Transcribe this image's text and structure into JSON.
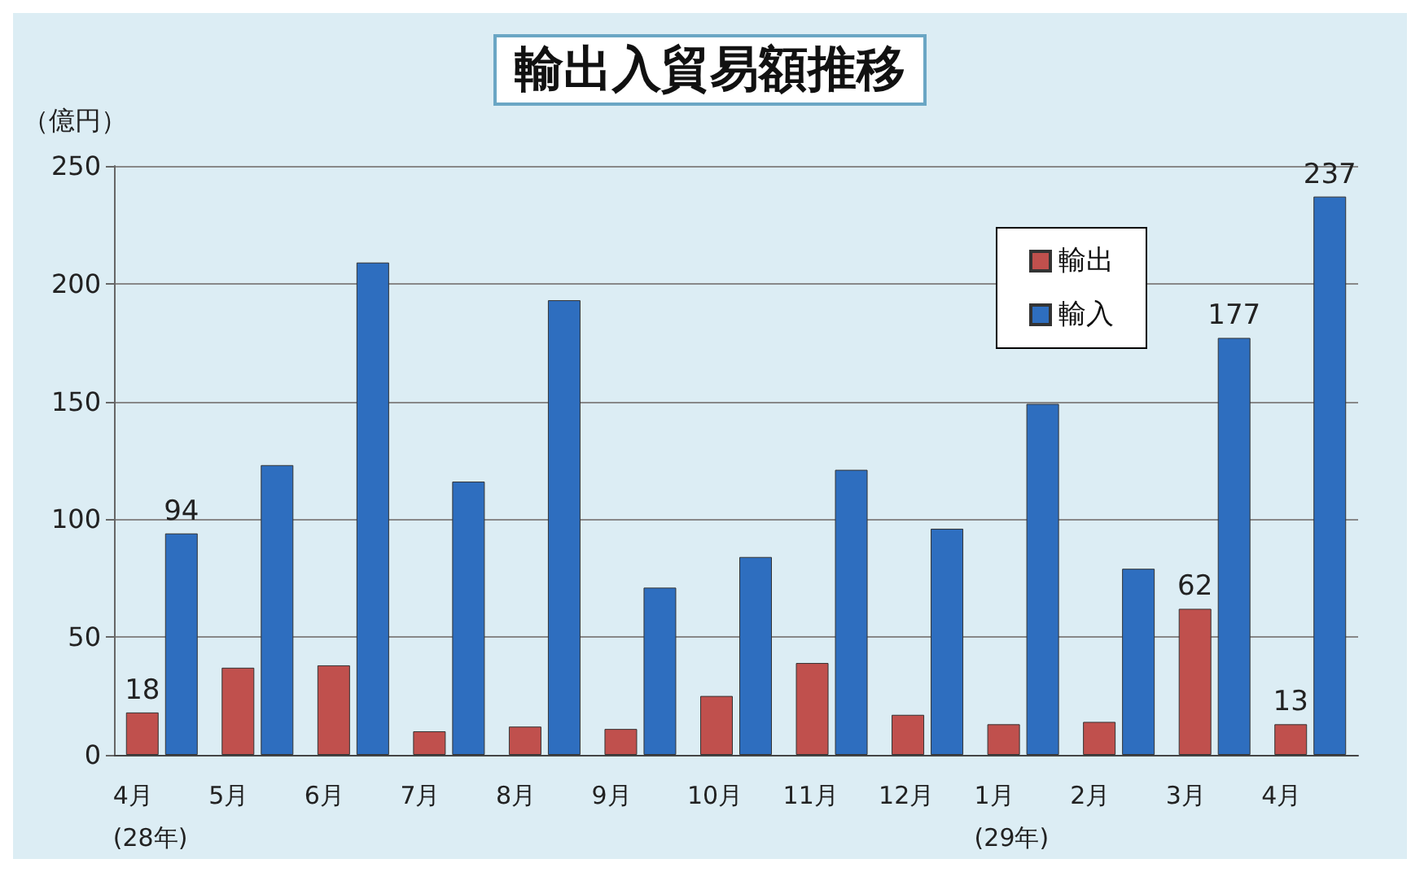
{
  "chart_data": {
    "type": "bar",
    "title": "輸出入貿易額推移",
    "ylabel": "（億円）",
    "categories": [
      "4月\n(28年)",
      "5月",
      "6月",
      "7月",
      "8月",
      "9月",
      "10月",
      "11月",
      "12月",
      "1月\n(29年)",
      "2月",
      "3月",
      "4月"
    ],
    "series": [
      {
        "name": "輸出",
        "color": "#c0504d",
        "values": [
          18,
          37,
          38,
          10,
          12,
          11,
          25,
          39,
          17,
          13,
          14,
          62,
          13
        ],
        "value_labels": [
          "18",
          null,
          null,
          null,
          null,
          null,
          null,
          null,
          null,
          null,
          null,
          "62",
          "13"
        ]
      },
      {
        "name": "輸入",
        "color": "#2e6ebf",
        "values": [
          94,
          123,
          209,
          116,
          193,
          71,
          84,
          121,
          96,
          149,
          79,
          177,
          237
        ],
        "value_labels": [
          "94",
          null,
          null,
          null,
          null,
          null,
          null,
          null,
          null,
          null,
          null,
          "177",
          "237"
        ]
      }
    ],
    "ylim": [
      0,
      250
    ],
    "yticks": [
      0,
      50,
      100,
      150,
      200,
      250
    ],
    "grid": "y",
    "legend": "top right"
  }
}
